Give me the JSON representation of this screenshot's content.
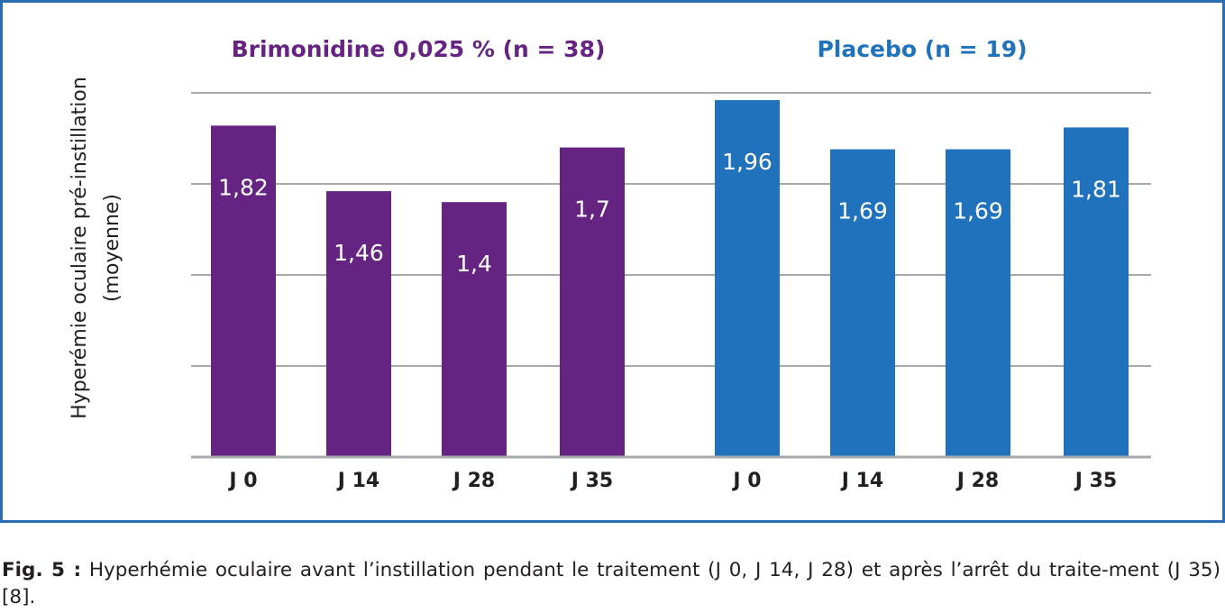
{
  "chart_data": {
    "type": "bar",
    "ylabel_line1": "Hyperémie oculaire pré-instillation",
    "ylabel_line2": "(moyenne)",
    "ylim": [
      0,
      2
    ],
    "grid": true,
    "groups": [
      {
        "name": "Brimonidine 0,025 % (n = 38)",
        "color": "#662482",
        "categories": [
          "J 0",
          "J 14",
          "J 28",
          "J 35"
        ],
        "values": [
          1.82,
          1.46,
          1.4,
          1.7
        ],
        "value_labels": [
          "1,82",
          "1,46",
          "1,4",
          "1,7"
        ]
      },
      {
        "name": "Placebo (n = 19)",
        "color": "#1f72bb",
        "categories": [
          "J 0",
          "J 14",
          "J 28",
          "J 35"
        ],
        "values": [
          1.96,
          1.69,
          1.69,
          1.81
        ],
        "value_labels": [
          "1,96",
          "1,69",
          "1,69",
          "1,81"
        ]
      }
    ]
  },
  "caption": {
    "label": "Fig. 5 :",
    "text": " Hyperhémie oculaire avant l’instillation pendant le traitement (J 0, J 14, J 28) et après l’arrêt du traite-ment (J 35) [8]."
  }
}
